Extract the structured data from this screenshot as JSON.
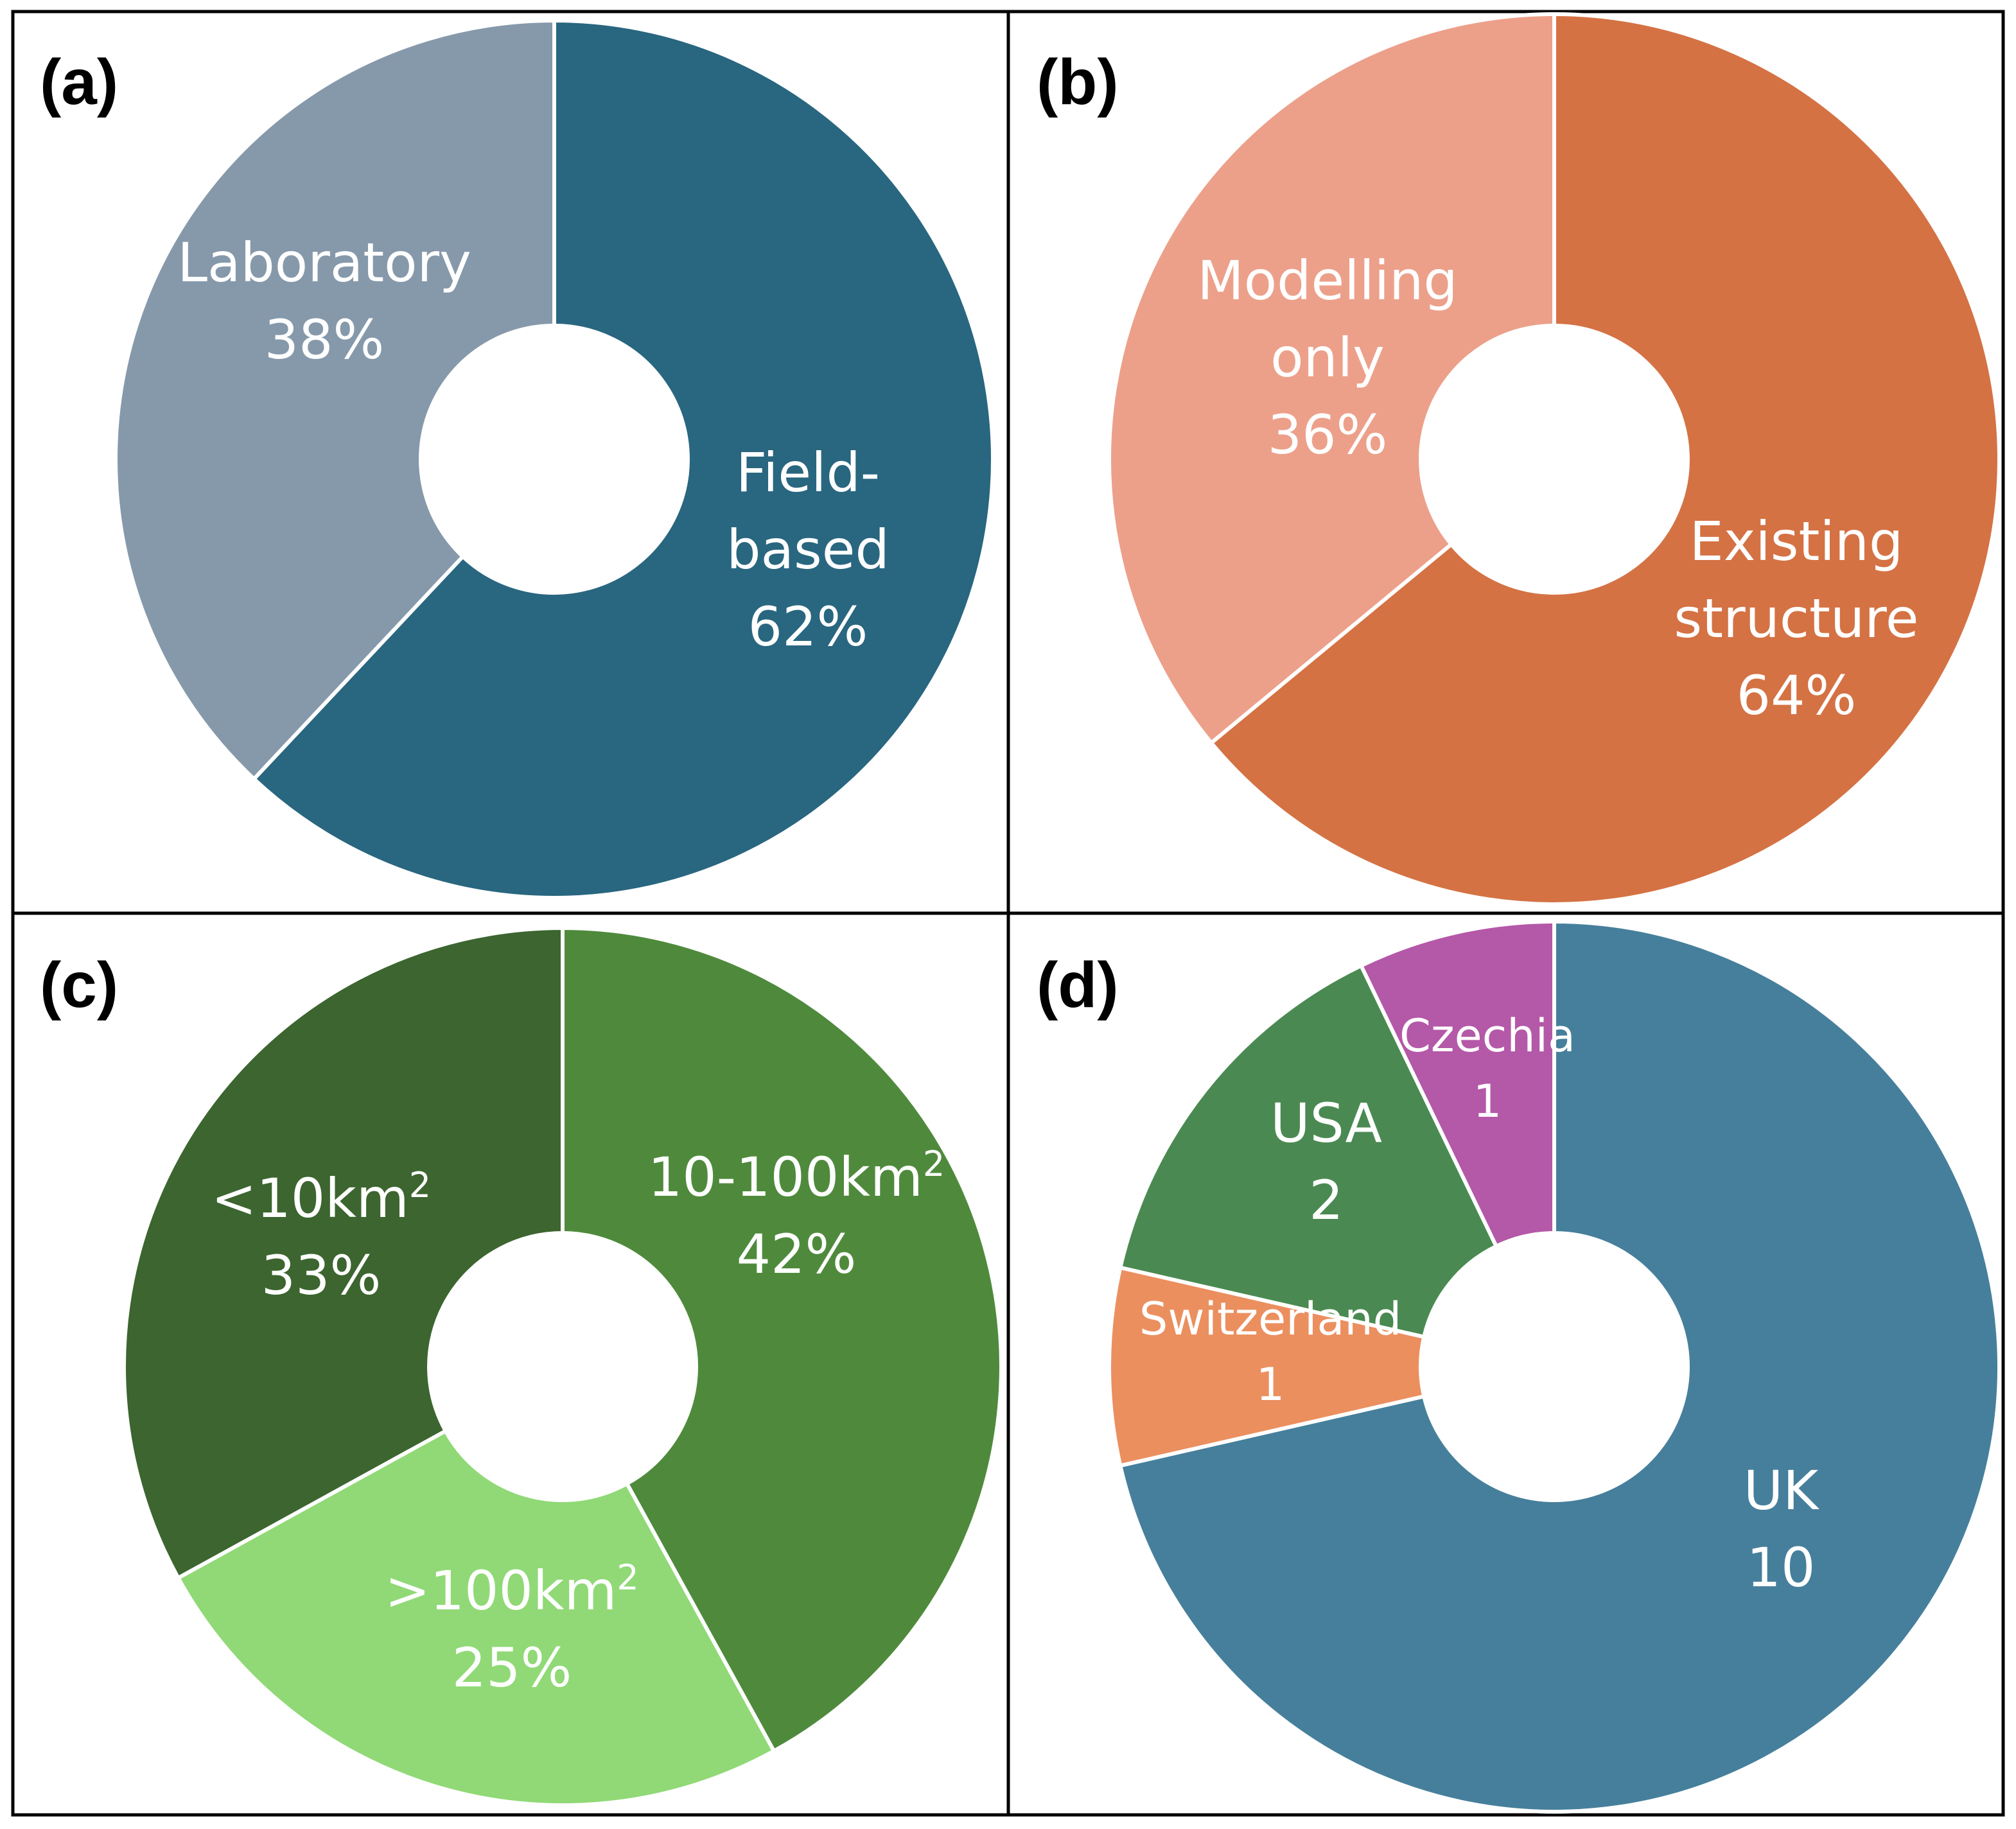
{
  "chart_data": [
    {
      "type": "pie",
      "panel": "(a)",
      "donut": true,
      "slices": [
        {
          "name": "Field-based",
          "label": "Field-based",
          "value": 62,
          "value_label": "62%",
          "color": "#29667F"
        },
        {
          "name": "Laboratory",
          "label": "Laboratory",
          "value": 38,
          "value_label": "38%",
          "color": "#8699AB"
        }
      ]
    },
    {
      "type": "pie",
      "panel": "(b)",
      "donut": true,
      "slices": [
        {
          "name": "Existing structure",
          "label": "Existing structure",
          "value": 64,
          "value_label": "64%",
          "color": "#D47244"
        },
        {
          "name": "Modelling only",
          "label": "Modelling only",
          "value": 36,
          "value_label": "36%",
          "color": "#ECA08A"
        }
      ]
    },
    {
      "type": "pie",
      "panel": "(c)",
      "donut": true,
      "slices": [
        {
          "name": "10-100km2",
          "label": "10-100km",
          "superscript": "2",
          "value": 42,
          "value_label": "42%",
          "color": "#4F8A3C"
        },
        {
          "name": ">100km2",
          "label": ">100km",
          "superscript": "2",
          "value": 25,
          "value_label": "25%",
          "color": "#90D976"
        },
        {
          "name": "<10km2",
          "label": "<10km",
          "superscript": "2",
          "value": 33,
          "value_label": "33%",
          "color": "#3C652F"
        }
      ]
    },
    {
      "type": "pie",
      "panel": "(d)",
      "donut": true,
      "slices": [
        {
          "name": "UK",
          "label": "UK",
          "value": 10,
          "value_label": "10",
          "color": "#467F9B"
        },
        {
          "name": "Switzerland",
          "label": "Switzerland",
          "value": 1,
          "value_label": "1",
          "color": "#EB8F5F"
        },
        {
          "name": "USA",
          "label": "USA",
          "value": 2,
          "value_label": "2",
          "color": "#4A8A52"
        },
        {
          "name": "Czechia",
          "label": "Czechia",
          "value": 1,
          "value_label": "1",
          "color": "#B458A8"
        }
      ]
    }
  ]
}
